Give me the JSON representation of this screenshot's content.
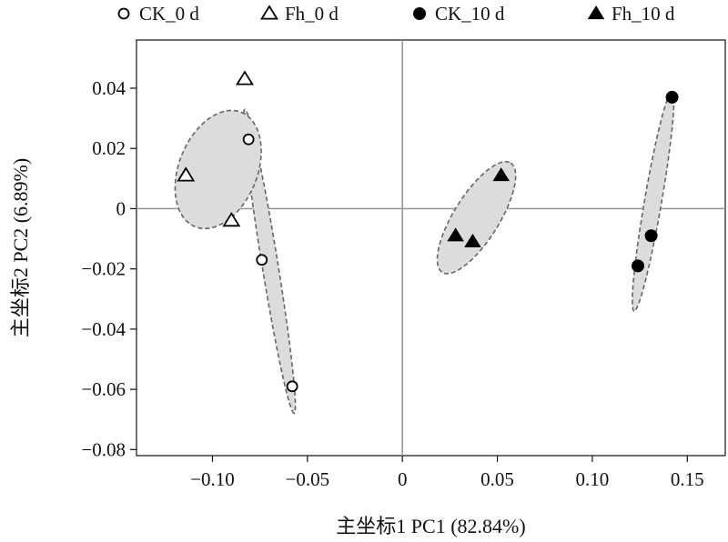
{
  "chart_data": {
    "type": "scatter",
    "xlabel": "主坐标1 PC1 (82.84%)",
    "ylabel": "主坐标2 PC2 (6.89%)",
    "xlim": [
      -0.14,
      0.17
    ],
    "ylim": [
      -0.082,
      0.056
    ],
    "x_ticks": [
      -0.1,
      -0.05,
      0,
      0.05,
      0.1,
      0.15
    ],
    "x_tick_labels": [
      "−0.10",
      "−0.05",
      "0",
      "0.05",
      "0.10",
      "0.15"
    ],
    "y_ticks": [
      -0.08,
      -0.06,
      -0.04,
      -0.02,
      0,
      0.02,
      0.04
    ],
    "y_tick_labels": [
      "−0.08",
      "−0.06",
      "−0.04",
      "−0.02",
      "0",
      "0.02",
      "0.04"
    ],
    "grid": false,
    "reference_lines": {
      "x": 0,
      "y": 0,
      "color": "#999999"
    },
    "legend": {
      "position": "top"
    },
    "series": [
      {
        "name": "CK_0 d",
        "marker": "circle-open",
        "points": [
          [
            -0.081,
            0.023
          ],
          [
            -0.074,
            -0.017
          ],
          [
            -0.058,
            -0.059
          ]
        ],
        "ellipse_outline": [
          [
            -0.083,
            0.033
          ],
          [
            -0.057,
            -0.068
          ]
        ],
        "ellipse_halfwidth": 0.0042
      },
      {
        "name": "Fh_0 d",
        "marker": "triangle-open",
        "points": [
          [
            -0.083,
            0.043
          ],
          [
            -0.114,
            0.011
          ],
          [
            -0.09,
            -0.004
          ]
        ],
        "ellipse": {
          "cx": -0.097,
          "cy": 0.013,
          "rx": 0.0325,
          "ry": 0.013,
          "angle_deg": -68
        }
      },
      {
        "name": "CK_10 d",
        "marker": "circle-filled",
        "points": [
          [
            0.142,
            0.037
          ],
          [
            0.131,
            -0.009
          ],
          [
            0.124,
            -0.019
          ]
        ],
        "ellipse_outline": [
          [
            0.142,
            0.039
          ],
          [
            0.122,
            -0.034
          ]
        ],
        "ellipse_halfwidth": 0.0045
      },
      {
        "name": "Fh_10 d",
        "marker": "triangle-filled",
        "points": [
          [
            0.052,
            0.011
          ],
          [
            0.028,
            -0.009
          ],
          [
            0.037,
            -0.011
          ]
        ],
        "ellipse": {
          "cx": 0.039,
          "cy": -0.003,
          "rx": 0.034,
          "ry": 0.0075,
          "angle_deg": -58
        }
      }
    ],
    "colors": {
      "ellipse_fill": "#dcdcdc",
      "ellipse_stroke": "#666666",
      "marker": "#000000"
    }
  }
}
